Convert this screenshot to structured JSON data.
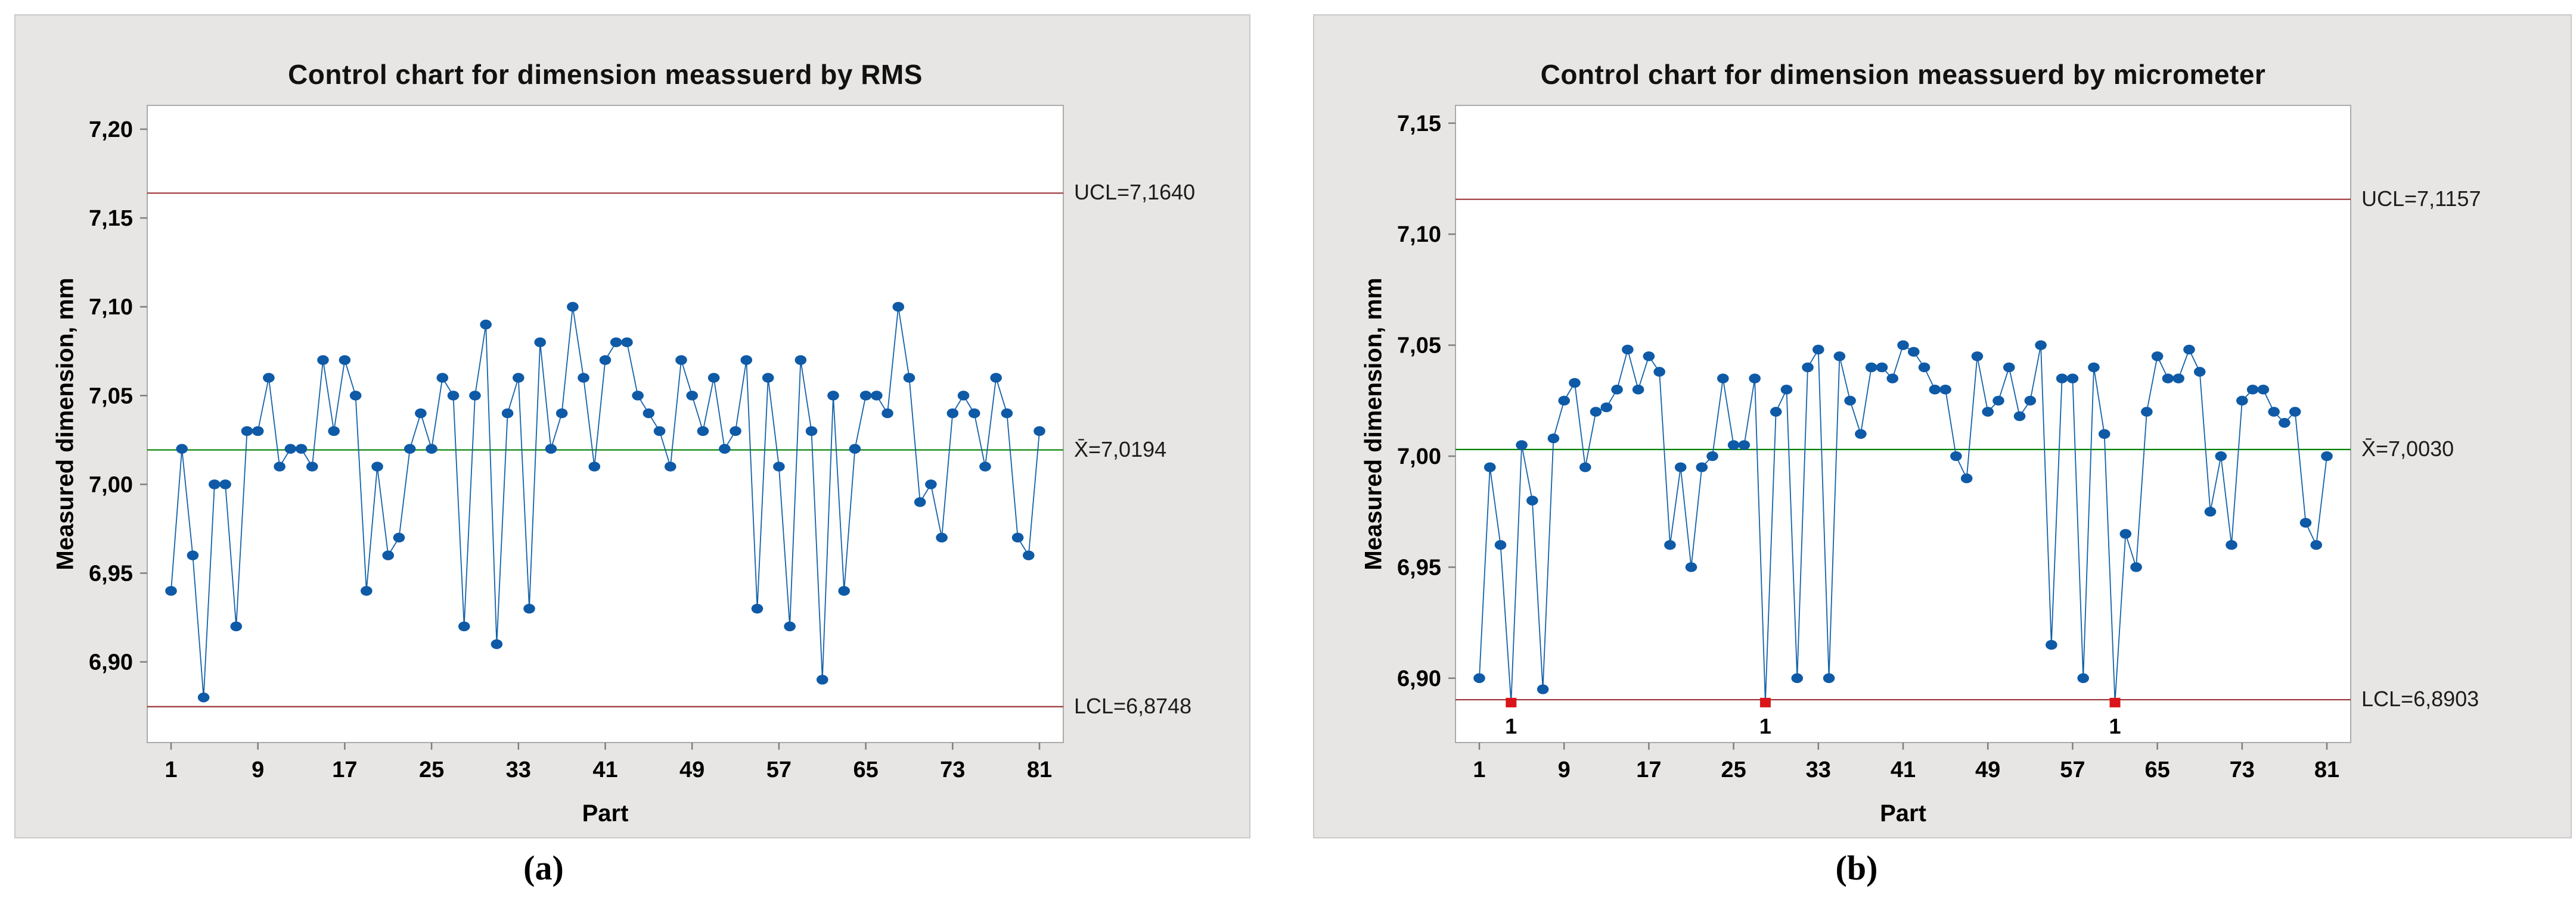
{
  "figure": {
    "captions": {
      "a": "(a)",
      "b": "(b)"
    },
    "colors": {
      "panel_bg": "#e7e6e4",
      "plot_bg": "#ffffff",
      "plot_border": "#ababab",
      "tick_mark": "#7f7f7f",
      "point_blue": "#0e5aa7",
      "line_blue": "#1261a8",
      "center_green": "#008000",
      "limit_maroon": "#9c3438",
      "flag_red": "#d9151a",
      "text": "#000000"
    }
  },
  "chart_data": [
    {
      "type": "line",
      "title": "Control chart for dimension meassuerd by RMS",
      "xlabel": "Part",
      "ylabel": "Measured dimension, mm",
      "x_ticks": [
        1,
        9,
        17,
        25,
        33,
        41,
        49,
        57,
        65,
        73,
        81
      ],
      "y_tick_labels": [
        "7,20",
        "7,15",
        "7,10",
        "7,05",
        "7,00",
        "6,95",
        "6,90"
      ],
      "y_tick_values": [
        7.2,
        7.15,
        7.1,
        7.05,
        7.0,
        6.95,
        6.9
      ],
      "ylim": [
        6.8546,
        7.2134
      ],
      "grid": false,
      "legend": "none",
      "values": [
        6.94,
        7.02,
        6.96,
        6.88,
        7.0,
        7.0,
        6.92,
        7.03,
        7.03,
        7.06,
        7.01,
        7.02,
        7.02,
        7.01,
        7.07,
        7.03,
        7.07,
        7.05,
        6.94,
        7.01,
        6.96,
        6.97,
        7.02,
        7.04,
        7.02,
        7.06,
        7.05,
        6.92,
        7.05,
        7.09,
        6.91,
        7.04,
        7.06,
        6.93,
        7.08,
        7.02,
        7.04,
        7.1,
        7.06,
        7.01,
        7.07,
        7.08,
        7.08,
        7.05,
        7.04,
        7.03,
        7.01,
        7.07,
        7.05,
        7.03,
        7.06,
        7.02,
        7.03,
        7.07,
        6.93,
        7.06,
        7.01,
        6.92,
        7.07,
        7.03,
        6.89,
        7.05,
        6.94,
        7.02,
        7.05,
        7.05,
        7.04,
        7.1,
        7.06,
        6.99,
        7.0,
        6.97,
        7.04,
        7.05,
        7.04,
        7.01,
        7.06,
        7.04,
        6.97,
        6.96,
        7.03
      ],
      "ucl": {
        "value": 7.164,
        "label": "UCL=7,1640"
      },
      "center": {
        "value": 7.0194,
        "label": "X̄=7,0194"
      },
      "lcl": {
        "value": 6.8748,
        "label": "LCL=6,8748"
      },
      "out_of_control": [],
      "flag_label": "1"
    },
    {
      "type": "line",
      "title": "Control chart for dimension meassuerd by micrometer",
      "xlabel": "Part",
      "ylabel": "Measured dimension, mm",
      "x_ticks": [
        1,
        9,
        17,
        25,
        33,
        41,
        49,
        57,
        65,
        73,
        81
      ],
      "y_tick_labels": [
        "7,15",
        "7,10",
        "7,05",
        "7,00",
        "6,95",
        "6,90"
      ],
      "y_tick_values": [
        7.15,
        7.1,
        7.05,
        7.0,
        6.95,
        6.9
      ],
      "ylim": [
        6.871,
        7.158
      ],
      "grid": false,
      "legend": "none",
      "values": [
        6.9,
        6.995,
        6.96,
        6.889,
        7.005,
        6.98,
        6.895,
        7.008,
        7.025,
        7.033,
        6.995,
        7.02,
        7.022,
        7.03,
        7.048,
        7.03,
        7.045,
        7.038,
        6.96,
        6.995,
        6.95,
        6.995,
        7.0,
        7.035,
        7.005,
        7.005,
        7.035,
        6.889,
        7.02,
        7.03,
        6.9,
        7.04,
        7.048,
        6.9,
        7.045,
        7.025,
        7.01,
        7.04,
        7.04,
        7.035,
        7.05,
        7.047,
        7.04,
        7.03,
        7.03,
        7.0,
        6.99,
        7.045,
        7.02,
        7.025,
        7.04,
        7.018,
        7.025,
        7.05,
        6.915,
        7.035,
        7.035,
        6.9,
        7.04,
        7.01,
        6.889,
        6.965,
        6.95,
        7.02,
        7.045,
        7.035,
        7.035,
        7.048,
        7.038,
        6.975,
        7.0,
        6.96,
        7.025,
        7.03,
        7.03,
        7.02,
        7.015,
        7.02,
        6.97,
        6.96,
        7.0
      ],
      "ucl": {
        "value": 7.1157,
        "label": "UCL=7,1157"
      },
      "center": {
        "value": 7.003,
        "label": "X̄=7,0030"
      },
      "lcl": {
        "value": 6.8903,
        "label": "LCL=6,8903"
      },
      "out_of_control": [
        4,
        28,
        61
      ],
      "flag_label": "1"
    }
  ]
}
